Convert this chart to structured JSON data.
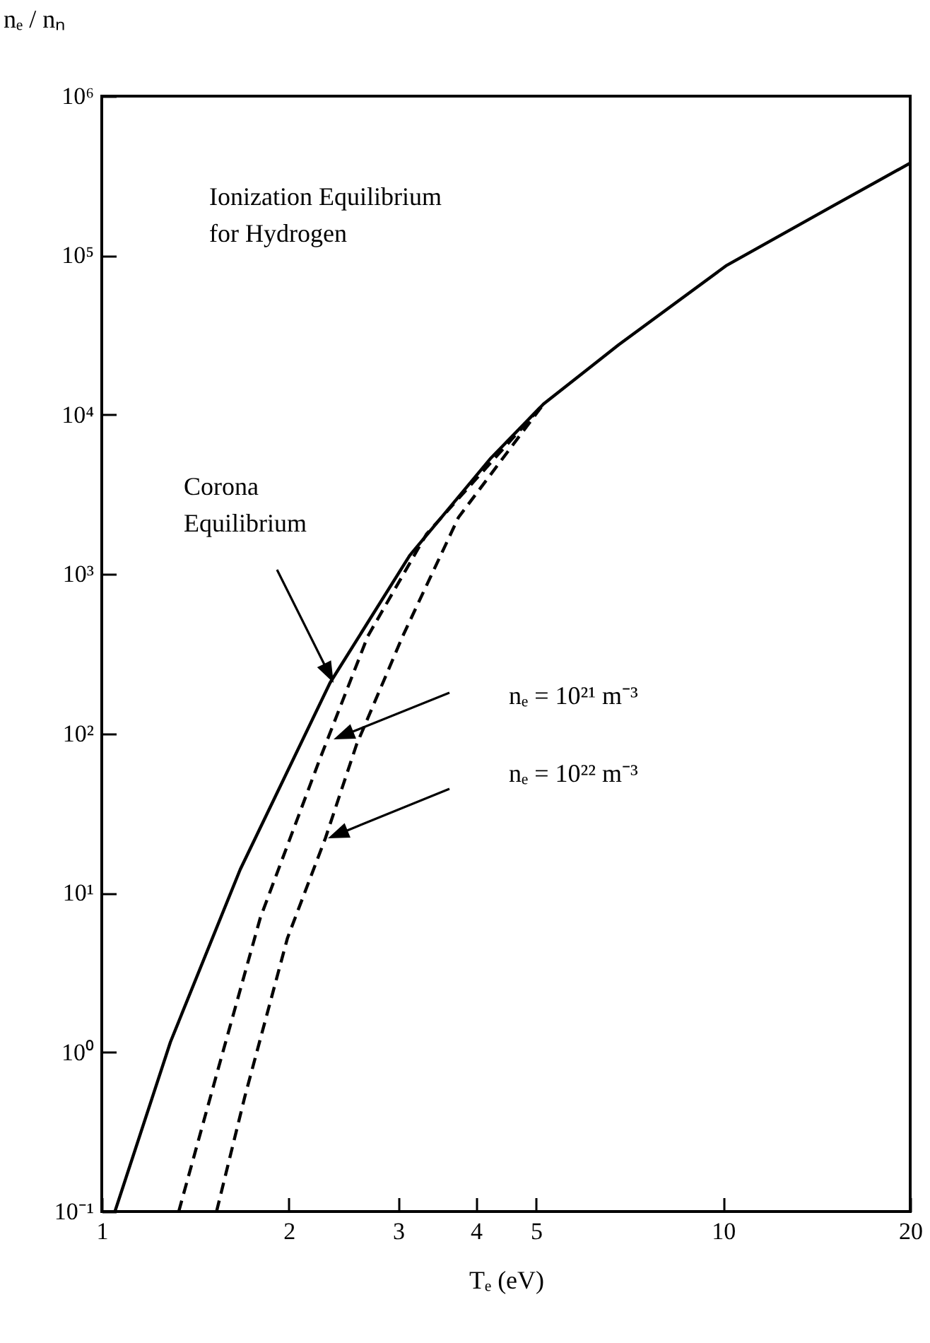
{
  "chart_data": {
    "type": "line",
    "xlabel": "Tₑ (eV)",
    "ylabel": "nₑ / nₙ",
    "xlim": [
      1,
      20
    ],
    "log": "xy",
    "xticks": [
      1,
      2,
      3,
      4,
      5,
      10,
      20
    ],
    "ylim": [
      0.1,
      1000000
    ],
    "yticks": [
      {
        "value": 0.1,
        "label": "10⁻¹"
      },
      {
        "value": 1,
        "label": "10⁰"
      },
      {
        "value": 10,
        "label": "10¹"
      },
      {
        "value": 100,
        "label": "10²"
      },
      {
        "value": 1000,
        "label": "10³"
      },
      {
        "value": 10000,
        "label": "10⁴"
      },
      {
        "value": 100000,
        "label": "10⁵"
      },
      {
        "value": 1000000,
        "label": "10⁶"
      }
    ],
    "series": [
      {
        "color": "#000000",
        "line_style": "solid",
        "x": [
          1.05,
          1.29,
          1.67,
          2.33,
          3.13,
          4.23,
          5.14,
          6.79,
          10.1,
          15,
          20
        ],
        "values": [
          0.1,
          1.16,
          14,
          208,
          1310,
          5360,
          11700,
          27500,
          86000,
          204000,
          380000
        ]
      },
      {
        "color": "#000000",
        "line_style": "dashed",
        "x": [
          1.33,
          1.54,
          1.8,
          2.24,
          2.68,
          3.33,
          5.14
        ],
        "values": [
          0.1,
          0.79,
          7,
          68,
          408,
          1780,
          11700
        ]
      },
      {
        "color": "#000000",
        "line_style": "dashed",
        "x": [
          1.53,
          1.7,
          1.99,
          2.29,
          2.57,
          3.05,
          3.75,
          5.14
        ],
        "values": [
          0.1,
          0.53,
          5.2,
          22,
          85,
          408,
          2270,
          11700
        ]
      }
    ],
    "annotations": [
      "Ionization Equilibrium\nfor Hydrogen",
      "Corona\nEquilibrium",
      "nₑ = 10²¹ m⁻³",
      "nₑ = 10²² m⁻³"
    ]
  }
}
